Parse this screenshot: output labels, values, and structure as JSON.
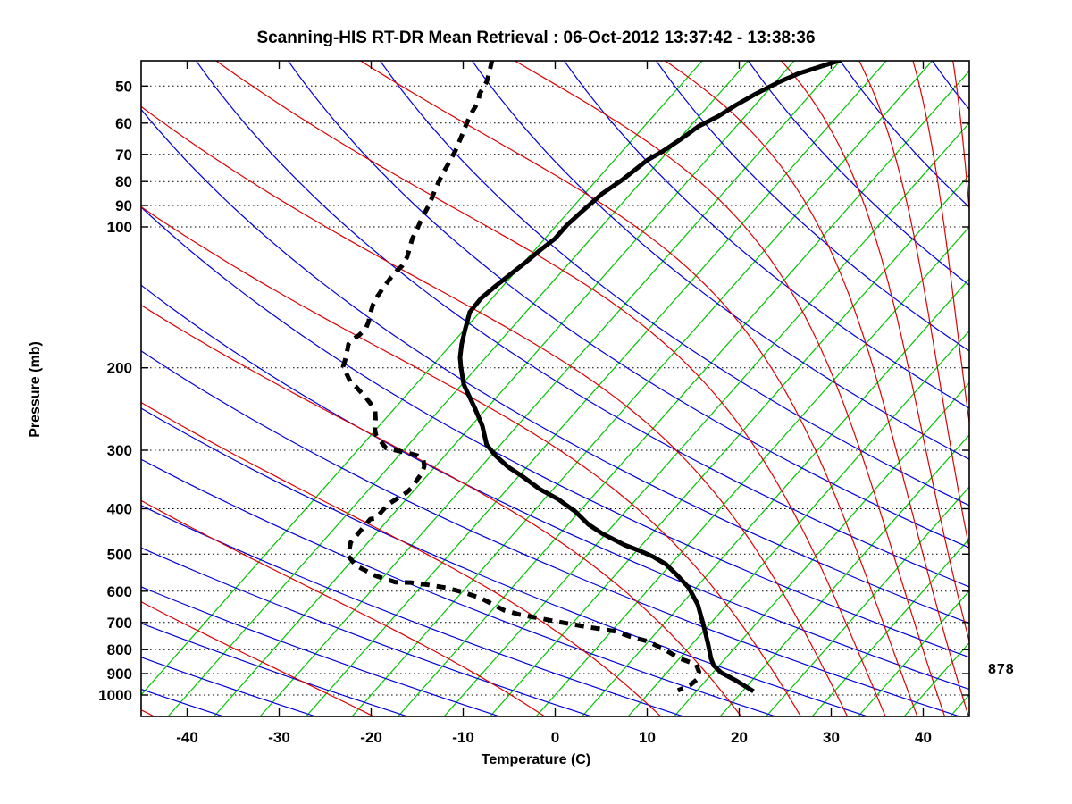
{
  "title": "Scanning-HIS RT-DR Mean Retrieval : 06-Oct-2012 13:37:42 - 13:38:36",
  "x_axis": {
    "label": "Temperature (C)",
    "tick_values": [
      -40,
      -30,
      -20,
      -10,
      0,
      10,
      20,
      30,
      40
    ]
  },
  "y_axis": {
    "label": "Pressure (mb)",
    "tick_values": [
      50,
      60,
      70,
      80,
      90,
      100,
      200,
      300,
      400,
      500,
      600,
      700,
      800,
      900,
      1000
    ]
  },
  "surface_pressure_label": "878",
  "colors": {
    "isotherm": "#00c400",
    "dry_adiabat": "#0000dd",
    "moist_adiabat": "#dd0000",
    "gridline": "#000000",
    "profile": "#000000",
    "frame": "#000000"
  },
  "chart_data": {
    "type": "skewt-log-p",
    "title": "Scanning-HIS RT-DR Mean Retrieval : 06-Oct-2012 13:37:42 - 13:38:36",
    "xlabel": "Temperature (C)",
    "ylabel": "Pressure (mb)",
    "x_range_c_at_1000mb": [
      -45,
      45
    ],
    "pressure_range_mb": [
      44.15,
      1112
    ],
    "skew_deg_c_per_decade": 45,
    "grid": "dotted horizontal isobars at labeled pressures",
    "background": {
      "isotherms": {
        "min_c": -45,
        "max_c": 45,
        "step_c": 5
      },
      "dry_adiabats": {
        "base_theta_k": 300,
        "horizontal_spacing_c": 10,
        "index_range": [
          -8,
          15
        ]
      },
      "moist_adiabats": {
        "theta_e_values_k": [
          150,
          175,
          200,
          225,
          250,
          275,
          300,
          325,
          350,
          375,
          400,
          425,
          450,
          475,
          500,
          525,
          550,
          575,
          600,
          625,
          650
        ]
      }
    },
    "series": [
      {
        "name": "temperature",
        "style": "solid",
        "points_p_t": [
          [
            44,
            -30.0
          ],
          [
            47,
            -33.3
          ],
          [
            49,
            -34.6
          ],
          [
            52,
            -36.0
          ],
          [
            55,
            -37.1
          ],
          [
            58,
            -37.9
          ],
          [
            61,
            -39.1
          ],
          [
            65,
            -39.8
          ],
          [
            69,
            -40.6
          ],
          [
            72,
            -41.4
          ],
          [
            79,
            -42.2
          ],
          [
            85,
            -43.1
          ],
          [
            93,
            -43.6
          ],
          [
            99,
            -43.9
          ],
          [
            106,
            -43.9
          ],
          [
            112,
            -44.4
          ],
          [
            119,
            -44.8
          ],
          [
            126,
            -45.3
          ],
          [
            134,
            -45.8
          ],
          [
            142,
            -46.2
          ],
          [
            152,
            -46.1
          ],
          [
            166,
            -44.9
          ],
          [
            178,
            -43.9
          ],
          [
            190,
            -42.8
          ],
          [
            199,
            -41.8
          ],
          [
            217,
            -39.8
          ],
          [
            229,
            -38.2
          ],
          [
            244,
            -36.3
          ],
          [
            266,
            -33.8
          ],
          [
            292,
            -31.5
          ],
          [
            308,
            -29.5
          ],
          [
            326,
            -27.0
          ],
          [
            341,
            -24.6
          ],
          [
            363,
            -21.5
          ],
          [
            381,
            -18.6
          ],
          [
            406,
            -15.4
          ],
          [
            432,
            -12.8
          ],
          [
            452,
            -10.4
          ],
          [
            478,
            -6.9
          ],
          [
            493,
            -4.5
          ],
          [
            506,
            -2.7
          ],
          [
            526,
            -0.5
          ],
          [
            557,
            1.9
          ],
          [
            590,
            4.2
          ],
          [
            641,
            6.8
          ],
          [
            709,
            9.4
          ],
          [
            781,
            11.8
          ],
          [
            835,
            13.4
          ],
          [
            865,
            14.4
          ],
          [
            896,
            15.9
          ],
          [
            932,
            18.3
          ],
          [
            982,
            21.2
          ]
        ]
      },
      {
        "name": "dewpoint",
        "style": "dashed",
        "points_p_t": [
          [
            44,
            -67.9
          ],
          [
            47.5,
            -66.8
          ],
          [
            49,
            -66.4
          ],
          [
            52,
            -66.0
          ],
          [
            54,
            -65.4
          ],
          [
            57.5,
            -65.0
          ],
          [
            60.5,
            -64.5
          ],
          [
            64,
            -63.9
          ],
          [
            68.5,
            -63.2
          ],
          [
            73,
            -62.7
          ],
          [
            77.5,
            -62.3
          ],
          [
            83.5,
            -61.6
          ],
          [
            89,
            -60.9
          ],
          [
            96,
            -60.3
          ],
          [
            100,
            -59.9
          ],
          [
            106,
            -59.4
          ],
          [
            116,
            -58.2
          ],
          [
            121,
            -57.9
          ],
          [
            124,
            -58.0
          ],
          [
            128,
            -58.0
          ],
          [
            132,
            -57.9
          ],
          [
            136,
            -57.8
          ],
          [
            142,
            -57.6
          ],
          [
            147,
            -57.3
          ],
          [
            154,
            -56.7
          ],
          [
            159,
            -56.2
          ],
          [
            165,
            -55.8
          ],
          [
            170,
            -55.9
          ],
          [
            174,
            -56.2
          ],
          [
            178,
            -56.2
          ],
          [
            190,
            -55.2
          ],
          [
            199,
            -54.6
          ],
          [
            207,
            -53.4
          ],
          [
            214,
            -52.4
          ],
          [
            220,
            -51.2
          ],
          [
            232,
            -49.1
          ],
          [
            239,
            -48.0
          ],
          [
            247,
            -46.9
          ],
          [
            258,
            -46.0
          ],
          [
            270,
            -45.2
          ],
          [
            278,
            -44.5
          ],
          [
            283,
            -43.9
          ],
          [
            297,
            -42.1
          ],
          [
            301,
            -40.5
          ],
          [
            304,
            -39.3
          ],
          [
            308,
            -38.0
          ],
          [
            315,
            -36.9
          ],
          [
            325,
            -36.2
          ],
          [
            336,
            -35.8
          ],
          [
            347,
            -35.7
          ],
          [
            359,
            -35.5
          ],
          [
            369,
            -35.6
          ],
          [
            392,
            -36.5
          ],
          [
            419,
            -36.5
          ],
          [
            421,
            -37.0
          ],
          [
            472,
            -36.9
          ],
          [
            504,
            -35.9
          ],
          [
            529,
            -34.1
          ],
          [
            557,
            -30.9
          ],
          [
            574,
            -28.2
          ],
          [
            575,
            -26.5
          ],
          [
            582,
            -24.3
          ],
          [
            590,
            -22.2
          ],
          [
            603,
            -19.9
          ],
          [
            622,
            -17.3
          ],
          [
            659,
            -13.7
          ],
          [
            673,
            -11.6
          ],
          [
            688,
            -8.6
          ],
          [
            701,
            -6.0
          ],
          [
            716,
            -2.9
          ],
          [
            731,
            0.4
          ],
          [
            751,
            2.6
          ],
          [
            767,
            4.8
          ],
          [
            798,
            7.4
          ],
          [
            835,
            10.0
          ],
          [
            850,
            11.4
          ],
          [
            861,
            12.4
          ],
          [
            892,
            13.4
          ],
          [
            928,
            13.9
          ],
          [
            953,
            13.7
          ],
          [
            965,
            13.3
          ],
          [
            978,
            12.9
          ]
        ]
      }
    ],
    "annotations": [
      {
        "text": "878",
        "meaning": "surface pressure (mb) marker at right edge",
        "pressure_mb": 878
      }
    ]
  }
}
